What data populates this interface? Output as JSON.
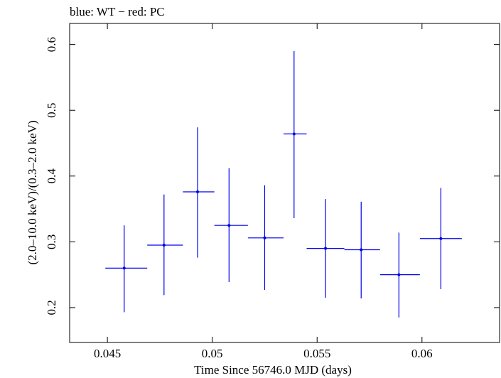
{
  "chart_data": {
    "type": "scatter",
    "title": "blue: WT − red: PC",
    "xlabel": "Time Since 56746.0 MJD (days)",
    "ylabel": "(2.0–10.0 keV)/(0.3–2.0 keV)",
    "xlim": [
      0.0432,
      0.0637
    ],
    "ylim": [
      0.147,
      0.632
    ],
    "x_ticks": [
      {
        "value": 0.045,
        "label": "0.045"
      },
      {
        "value": 0.05,
        "label": "0.05"
      },
      {
        "value": 0.055,
        "label": "0.055"
      },
      {
        "value": 0.06,
        "label": "0.06"
      }
    ],
    "y_ticks": [
      {
        "value": 0.2,
        "label": "0.2"
      },
      {
        "value": 0.3,
        "label": "0.3"
      },
      {
        "value": 0.4,
        "label": "0.4"
      },
      {
        "value": 0.5,
        "label": "0.5"
      },
      {
        "value": 0.6,
        "label": "0.6"
      }
    ],
    "series": [
      {
        "color": "#0000ee",
        "points": [
          {
            "x": 0.0458,
            "y": 0.26,
            "x_lo": 0.0449,
            "x_hi": 0.0469,
            "y_lo": 0.193,
            "y_hi": 0.325
          },
          {
            "x": 0.0477,
            "y": 0.295,
            "x_lo": 0.0469,
            "x_hi": 0.0486,
            "y_lo": 0.219,
            "y_hi": 0.372
          },
          {
            "x": 0.0493,
            "y": 0.376,
            "x_lo": 0.0486,
            "x_hi": 0.0501,
            "y_lo": 0.276,
            "y_hi": 0.474
          },
          {
            "x": 0.0508,
            "y": 0.325,
            "x_lo": 0.0501,
            "x_hi": 0.0517,
            "y_lo": 0.239,
            "y_hi": 0.412
          },
          {
            "x": 0.0525,
            "y": 0.306,
            "x_lo": 0.0517,
            "x_hi": 0.0534,
            "y_lo": 0.227,
            "y_hi": 0.386
          },
          {
            "x": 0.0539,
            "y": 0.464,
            "x_lo": 0.0534,
            "x_hi": 0.0545,
            "y_lo": 0.336,
            "y_hi": 0.59
          },
          {
            "x": 0.0554,
            "y": 0.29,
            "x_lo": 0.0545,
            "x_hi": 0.0563,
            "y_lo": 0.215,
            "y_hi": 0.365
          },
          {
            "x": 0.0571,
            "y": 0.288,
            "x_lo": 0.0563,
            "x_hi": 0.058,
            "y_lo": 0.214,
            "y_hi": 0.361
          },
          {
            "x": 0.0589,
            "y": 0.25,
            "x_lo": 0.058,
            "x_hi": 0.0599,
            "y_lo": 0.185,
            "y_hi": 0.314
          },
          {
            "x": 0.0609,
            "y": 0.305,
            "x_lo": 0.0599,
            "x_hi": 0.0619,
            "y_lo": 0.228,
            "y_hi": 0.382
          }
        ]
      }
    ],
    "grid": false
  }
}
